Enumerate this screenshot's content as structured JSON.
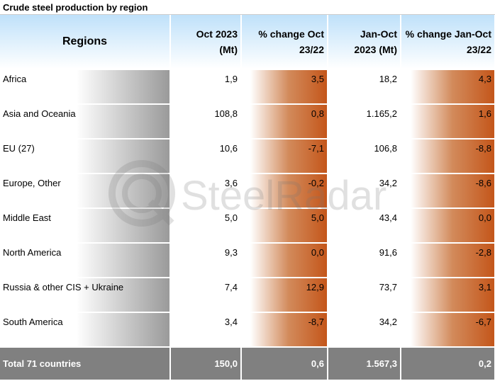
{
  "title": "Crude steel production by region",
  "watermark": "SteelRadar",
  "header": {
    "columns": [
      [
        "Regions"
      ],
      [
        "Oct 2023",
        "(Mt)"
      ],
      [
        "% change Oct",
        "23/22"
      ],
      [
        "Jan-Oct",
        "2023 (Mt)"
      ],
      [
        "% change Jan-Oct",
        "23/22"
      ]
    ]
  },
  "table": {
    "rows": [
      [
        "Africa",
        "1,9",
        "3,5",
        "18,2",
        "4,3"
      ],
      [
        "Asia and Oceania",
        "108,8",
        "0,8",
        "1.165,2",
        "1,6"
      ],
      [
        "EU (27)",
        "10,6",
        "-7,1",
        "106,8",
        "-8,8"
      ],
      [
        "Europe, Other",
        "3,6",
        "-0,2",
        "34,2",
        "-8,6"
      ],
      [
        "Middle East",
        "5,0",
        "5,0",
        "43,4",
        "0,0"
      ],
      [
        "North America",
        "9,3",
        "0,0",
        "91,6",
        "-2,8"
      ],
      [
        "Russia & other CIS + Ukraine",
        "7,4",
        "12,9",
        "73,7",
        "3,1"
      ],
      [
        "South America",
        "3,4",
        "-8,7",
        "34,2",
        "-6,7"
      ]
    ]
  },
  "total": [
    "Total 71 countries",
    "150,0",
    "0,6",
    "1.567,3",
    "0,2"
  ]
}
